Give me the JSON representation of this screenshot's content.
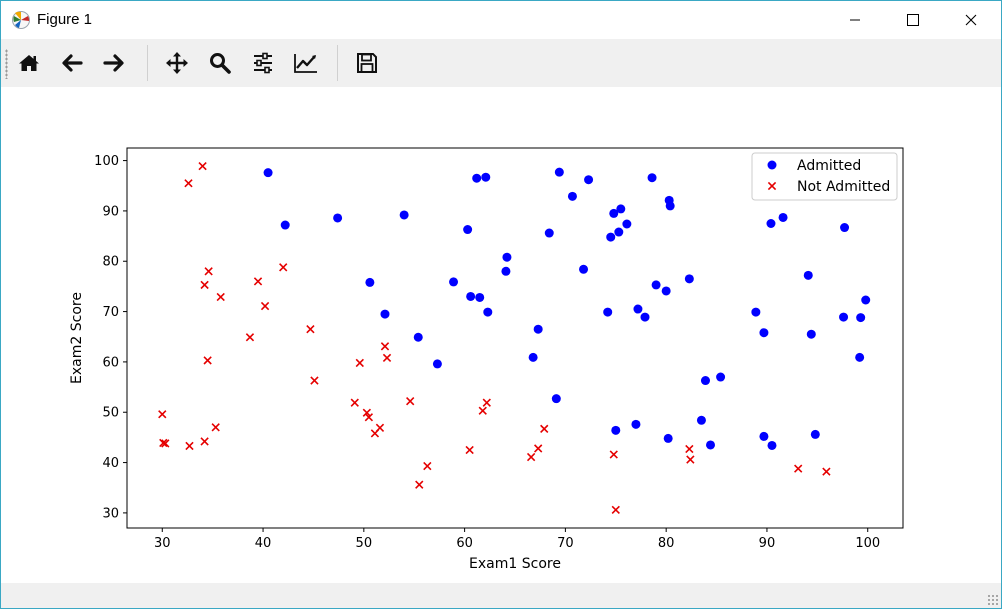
{
  "window": {
    "title": "Figure 1"
  },
  "toolbar": {
    "buttons": [
      {
        "name": "home-icon",
        "label": "Home"
      },
      {
        "name": "back-arrow-icon",
        "label": "Back"
      },
      {
        "name": "forward-arrow-icon",
        "label": "Forward"
      },
      {
        "name": "pan-icon",
        "label": "Pan"
      },
      {
        "name": "zoom-icon",
        "label": "Zoom"
      },
      {
        "name": "subplots-icon",
        "label": "Subplots"
      },
      {
        "name": "edit-axis-icon",
        "label": "Customize"
      },
      {
        "name": "save-icon",
        "label": "Save"
      }
    ]
  },
  "colors": {
    "admitted": "#0000ff",
    "not_admitted": "#e50000",
    "window_border": "#3aa8c4",
    "toolbar_bg": "#f0f0f0"
  },
  "chart_data": {
    "type": "scatter",
    "xlabel": "Exam1 Score",
    "ylabel": "Exam2 Score",
    "xlim": [
      26.5,
      103.5
    ],
    "ylim": [
      27,
      102.5
    ],
    "xticks": [
      30,
      40,
      50,
      60,
      70,
      80,
      90,
      100
    ],
    "yticks": [
      30,
      40,
      50,
      60,
      70,
      80,
      90,
      100
    ],
    "legend_position": "top-right",
    "series": [
      {
        "name": "Admitted",
        "marker": "circle",
        "color": "#0000ff",
        "points": [
          [
            40.5,
            97.6
          ],
          [
            42.2,
            87.2
          ],
          [
            47.4,
            88.6
          ],
          [
            50.6,
            75.8
          ],
          [
            52.1,
            69.5
          ],
          [
            54.0,
            89.2
          ],
          [
            55.4,
            64.9
          ],
          [
            57.3,
            59.6
          ],
          [
            58.9,
            75.9
          ],
          [
            60.3,
            86.3
          ],
          [
            60.6,
            73.0
          ],
          [
            61.2,
            96.5
          ],
          [
            61.5,
            72.8
          ],
          [
            62.1,
            96.7
          ],
          [
            62.3,
            69.9
          ],
          [
            64.2,
            80.8
          ],
          [
            64.1,
            78.0
          ],
          [
            66.8,
            60.9
          ],
          [
            67.3,
            66.5
          ],
          [
            68.4,
            85.6
          ],
          [
            69.1,
            52.7
          ],
          [
            69.4,
            97.7
          ],
          [
            70.7,
            92.9
          ],
          [
            71.8,
            78.4
          ],
          [
            72.3,
            96.2
          ],
          [
            74.2,
            69.9
          ],
          [
            74.5,
            84.8
          ],
          [
            74.8,
            89.5
          ],
          [
            75.0,
            46.4
          ],
          [
            75.3,
            85.8
          ],
          [
            75.5,
            90.4
          ],
          [
            76.1,
            87.4
          ],
          [
            77.0,
            47.6
          ],
          [
            77.2,
            70.5
          ],
          [
            77.9,
            68.9
          ],
          [
            78.6,
            96.6
          ],
          [
            79.0,
            75.3
          ],
          [
            80.0,
            74.1
          ],
          [
            80.2,
            44.8
          ],
          [
            80.3,
            92.1
          ],
          [
            80.4,
            91.0
          ],
          [
            82.3,
            76.5
          ],
          [
            83.5,
            48.4
          ],
          [
            83.9,
            56.3
          ],
          [
            84.4,
            43.5
          ],
          [
            85.4,
            57.0
          ],
          [
            88.9,
            69.9
          ],
          [
            89.7,
            65.8
          ],
          [
            89.7,
            45.2
          ],
          [
            90.4,
            87.5
          ],
          [
            90.5,
            43.4
          ],
          [
            91.6,
            88.7
          ],
          [
            94.1,
            77.2
          ],
          [
            94.4,
            65.5
          ],
          [
            94.8,
            45.6
          ],
          [
            97.6,
            68.9
          ],
          [
            97.7,
            86.7
          ],
          [
            99.3,
            68.8
          ],
          [
            99.2,
            60.9
          ],
          [
            99.8,
            72.3
          ]
        ]
      },
      {
        "name": "Not Admitted",
        "marker": "x",
        "color": "#e50000",
        "points": [
          [
            30.1,
            43.9
          ],
          [
            30.3,
            43.8
          ],
          [
            30.0,
            49.6
          ],
          [
            32.6,
            95.5
          ],
          [
            32.7,
            43.3
          ],
          [
            34.0,
            98.9
          ],
          [
            34.2,
            75.3
          ],
          [
            34.2,
            44.2
          ],
          [
            34.5,
            60.3
          ],
          [
            34.6,
            78.0
          ],
          [
            35.3,
            47.0
          ],
          [
            35.8,
            72.9
          ],
          [
            38.7,
            64.9
          ],
          [
            39.5,
            76.0
          ],
          [
            40.2,
            71.1
          ],
          [
            42.0,
            78.8
          ],
          [
            44.7,
            66.5
          ],
          [
            45.1,
            56.3
          ],
          [
            49.1,
            51.9
          ],
          [
            49.6,
            59.8
          ],
          [
            50.3,
            49.9
          ],
          [
            50.5,
            49.0
          ],
          [
            51.1,
            45.8
          ],
          [
            51.6,
            46.9
          ],
          [
            52.1,
            63.1
          ],
          [
            52.3,
            60.8
          ],
          [
            54.6,
            52.2
          ],
          [
            55.5,
            35.6
          ],
          [
            56.3,
            39.3
          ],
          [
            60.5,
            42.5
          ],
          [
            61.8,
            50.3
          ],
          [
            62.2,
            51.9
          ],
          [
            66.6,
            41.1
          ],
          [
            67.3,
            42.8
          ],
          [
            67.9,
            46.7
          ],
          [
            74.8,
            41.6
          ],
          [
            75.0,
            30.6
          ],
          [
            82.3,
            42.7
          ],
          [
            82.4,
            40.6
          ],
          [
            93.1,
            38.8
          ],
          [
            95.9,
            38.2
          ]
        ]
      }
    ]
  }
}
